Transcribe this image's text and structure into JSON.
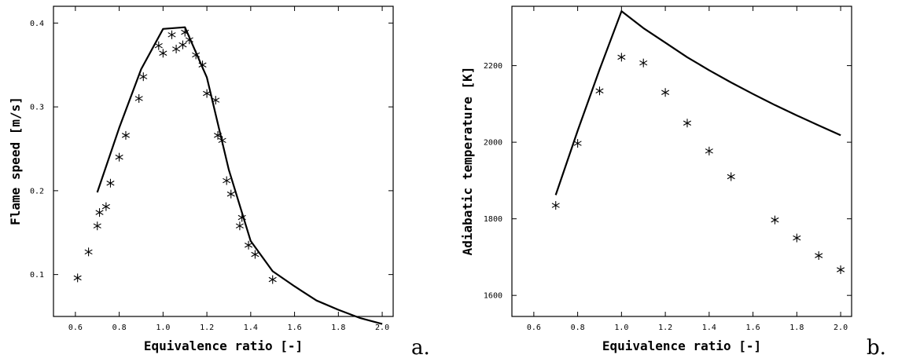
{
  "chart_data": [
    {
      "type": "line",
      "panel": "a.",
      "xlabel": "Equivalence ratio [-]",
      "ylabel": "Flame speed [m/s]",
      "xlim": [
        0.5,
        2.05
      ],
      "ylim": [
        0.05,
        0.42
      ],
      "xticks": [
        "0.6",
        "0.8",
        "1.0",
        "1.2",
        "1.4",
        "1.6",
        "1.8",
        "2.0"
      ],
      "yticks": [
        "0.1",
        "0.2",
        "0.3",
        "0.4"
      ],
      "xtick_values": [
        0.6,
        0.8,
        1.0,
        1.2,
        1.4,
        1.6,
        1.8,
        2.0
      ],
      "ytick_values": [
        0.1,
        0.2,
        0.3,
        0.4
      ],
      "series": [
        {
          "style": "line",
          "x": [
            0.7,
            0.8,
            0.9,
            1.0,
            1.1,
            1.2,
            1.3,
            1.4,
            1.5,
            1.6,
            1.7,
            1.8,
            1.9,
            2.0
          ],
          "y": [
            0.198,
            0.275,
            0.345,
            0.393,
            0.395,
            0.335,
            0.225,
            0.14,
            0.104,
            0.086,
            0.069,
            0.058,
            0.048,
            0.041
          ]
        },
        {
          "style": "markers",
          "x": [
            0.61,
            0.66,
            0.7,
            0.71,
            0.74,
            0.76,
            0.8,
            0.83,
            0.89,
            0.91,
            0.98,
            1.0,
            1.04,
            1.06,
            1.09,
            1.1,
            1.12,
            1.15,
            1.18,
            1.2,
            1.24,
            1.25,
            1.27,
            1.29,
            1.31,
            1.35,
            1.36,
            1.39,
            1.42,
            1.5
          ],
          "y": [
            0.096,
            0.127,
            0.158,
            0.174,
            0.181,
            0.209,
            0.24,
            0.266,
            0.31,
            0.336,
            0.373,
            0.364,
            0.386,
            0.369,
            0.374,
            0.389,
            0.38,
            0.362,
            0.35,
            0.316,
            0.308,
            0.266,
            0.26,
            0.212,
            0.196,
            0.158,
            0.168,
            0.135,
            0.124,
            0.094
          ]
        }
      ]
    },
    {
      "type": "line",
      "panel": "b.",
      "xlabel": "Equivalence ratio [-]",
      "ylabel": "Adiabatic temperature [K]",
      "xlim": [
        0.5,
        2.05
      ],
      "ylim": [
        1545,
        2355
      ],
      "xticks": [
        "0.6",
        "0.8",
        "1.0",
        "1.2",
        "1.4",
        "1.6",
        "1.8",
        "2.0"
      ],
      "yticks": [
        "1600",
        "1800",
        "2000",
        "2200"
      ],
      "xtick_values": [
        0.6,
        0.8,
        1.0,
        1.2,
        1.4,
        1.6,
        1.8,
        2.0
      ],
      "ytick_values": [
        1600,
        1800,
        2000,
        2200
      ],
      "series": [
        {
          "style": "line",
          "x": [
            0.7,
            0.8,
            0.9,
            1.0,
            1.1,
            1.2,
            1.3,
            1.4,
            1.5,
            1.6,
            1.7,
            1.8,
            1.9,
            2.0
          ],
          "y": [
            1862,
            2030,
            2190,
            2342,
            2298,
            2260,
            2222,
            2188,
            2156,
            2126,
            2097,
            2070,
            2044,
            2018
          ]
        },
        {
          "style": "markers",
          "x": [
            0.7,
            0.8,
            0.9,
            1.0,
            1.1,
            1.2,
            1.3,
            1.4,
            1.5,
            1.7,
            1.8,
            1.9,
            2.0
          ],
          "y": [
            1835,
            1997,
            2134,
            2222,
            2207,
            2130,
            2050,
            1977,
            1910,
            1797,
            1750,
            1704,
            1667
          ]
        }
      ]
    }
  ]
}
